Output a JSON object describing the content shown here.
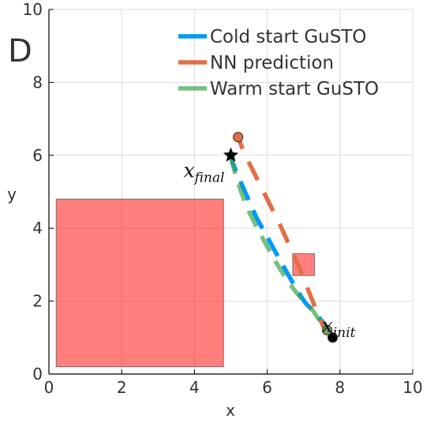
{
  "chart_data": {
    "type": "line",
    "panel_label": "D",
    "xlabel": "x",
    "ylabel": "y",
    "xlim": [
      0,
      10
    ],
    "ylim": [
      0,
      10
    ],
    "xticks": [
      0,
      2,
      4,
      6,
      8,
      10
    ],
    "yticks": [
      0,
      2,
      4,
      6,
      8,
      10
    ],
    "grid": true,
    "legend_position": "top-right",
    "series": [
      {
        "name": "Cold start GuSTO",
        "color": "#009AFA",
        "style": "dashed",
        "x": [
          7.75,
          7.55,
          7.3,
          7.05,
          6.85,
          6.65,
          6.45,
          6.2,
          5.95,
          5.7,
          5.5,
          5.3,
          5.15,
          5.05,
          5.0
        ],
        "y": [
          1.1,
          1.4,
          1.7,
          1.95,
          2.25,
          2.6,
          2.95,
          3.4,
          3.85,
          4.3,
          4.75,
          5.2,
          5.55,
          5.8,
          6.0
        ]
      },
      {
        "name": "NN prediction",
        "color": "#E26F46",
        "style": "dashed",
        "x": [
          5.2,
          5.35,
          5.6,
          5.85,
          6.1,
          6.35,
          6.6,
          6.85,
          7.05,
          7.25,
          7.45,
          7.6
        ],
        "y": [
          6.5,
          6.1,
          5.6,
          5.1,
          4.6,
          4.1,
          3.55,
          3.0,
          2.5,
          2.0,
          1.5,
          1.2
        ]
      },
      {
        "name": "Warm start GuSTO",
        "color": "#3DA44D",
        "style": "dashed",
        "x": [
          7.65,
          7.45,
          7.25,
          7.0,
          6.75,
          6.5,
          6.25,
          6.0,
          5.75,
          5.5,
          5.3,
          5.15,
          5.05,
          5.0
        ],
        "y": [
          1.2,
          1.45,
          1.75,
          2.0,
          2.3,
          2.65,
          3.05,
          3.5,
          3.95,
          4.45,
          4.95,
          5.4,
          5.75,
          6.0
        ]
      }
    ],
    "obstacles": [
      {
        "x": [
          0.2,
          4.8
        ],
        "y": [
          0.2,
          4.8
        ],
        "color": "#FF0000",
        "opacity": 0.5
      },
      {
        "x": [
          6.7,
          7.3
        ],
        "y": [
          2.7,
          3.3
        ],
        "color": "#FF0000",
        "opacity": 0.5
      }
    ],
    "markers": [
      {
        "name": "start",
        "shape": "circle",
        "color": "#000000",
        "x": 7.8,
        "y": 1.0
      },
      {
        "name": "warm-start-end",
        "shape": "circle",
        "color": "#6E9F5A",
        "x": 7.65,
        "y": 1.2
      },
      {
        "name": "nn-end",
        "shape": "circle",
        "color": "#E26F46",
        "x": 5.2,
        "y": 6.5
      },
      {
        "name": "goal",
        "shape": "star",
        "color": "#000000",
        "x": 5.0,
        "y": 6.0
      }
    ],
    "annotations": [
      {
        "text": "x",
        "subscript": "final",
        "x": 3.7,
        "y": 5.4
      },
      {
        "text": "x",
        "subscript": "init",
        "x": 7.5,
        "y": 1.15
      }
    ]
  }
}
